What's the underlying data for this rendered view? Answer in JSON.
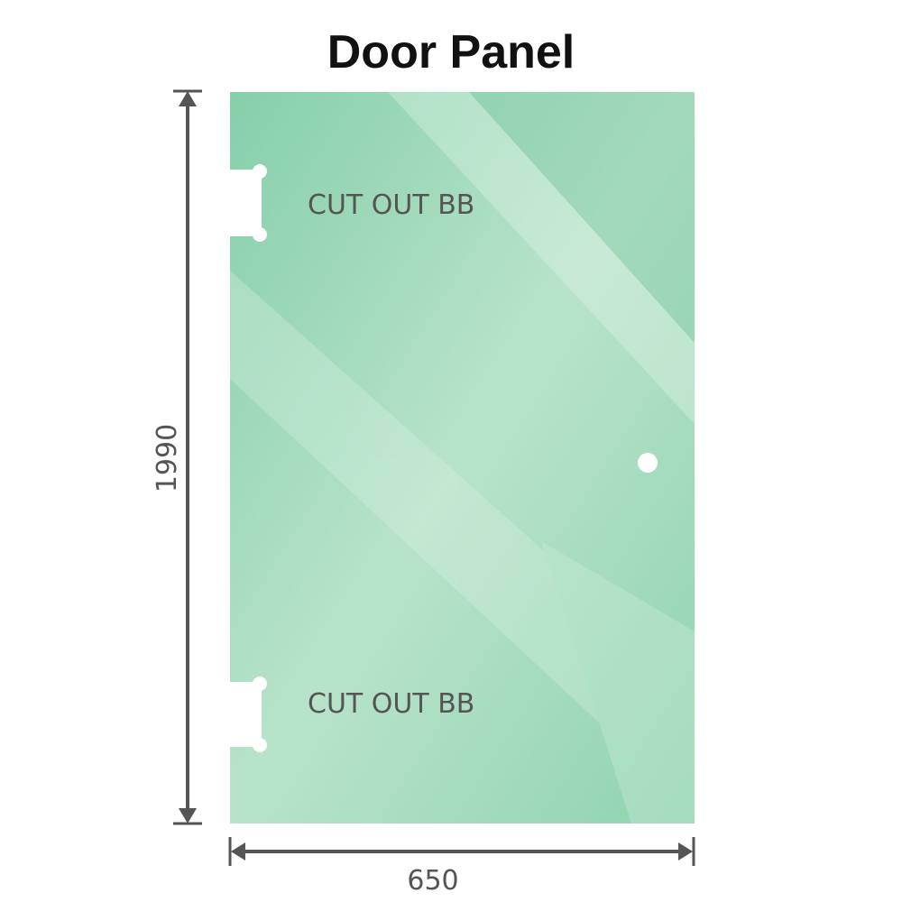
{
  "title": "Door Panel",
  "dimensions": {
    "height": "1990",
    "width": "650"
  },
  "cutouts": [
    {
      "label": "CUT OUT BB"
    },
    {
      "label": "CUT OUT BB"
    }
  ],
  "colors": {
    "glass": "#86cfa9",
    "glass_light": "#bde6cf",
    "dimension_line": "#555555",
    "text": "#555555"
  }
}
